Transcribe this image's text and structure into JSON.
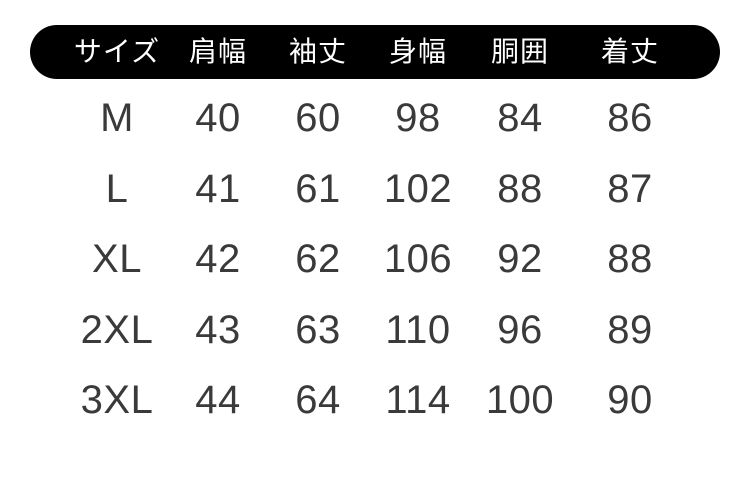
{
  "chart_data": {
    "type": "table",
    "columns": [
      "サイズ",
      "肩幅",
      "袖丈",
      "身幅",
      "胴囲",
      "着丈"
    ],
    "rows": [
      {
        "size": "M",
        "values": [
          40,
          60,
          98,
          84,
          86
        ]
      },
      {
        "size": "L",
        "values": [
          41,
          61,
          102,
          88,
          87
        ]
      },
      {
        "size": "XL",
        "values": [
          42,
          62,
          106,
          92,
          88
        ]
      },
      {
        "size": "2XL",
        "values": [
          43,
          63,
          110,
          96,
          89
        ]
      },
      {
        "size": "3XL",
        "values": [
          44,
          64,
          114,
          100,
          90
        ]
      }
    ]
  },
  "colors": {
    "header_bg": "#000000",
    "header_text": "#ffffff",
    "body_text": "#3a3a3a",
    "page_bg": "#ffffff"
  }
}
